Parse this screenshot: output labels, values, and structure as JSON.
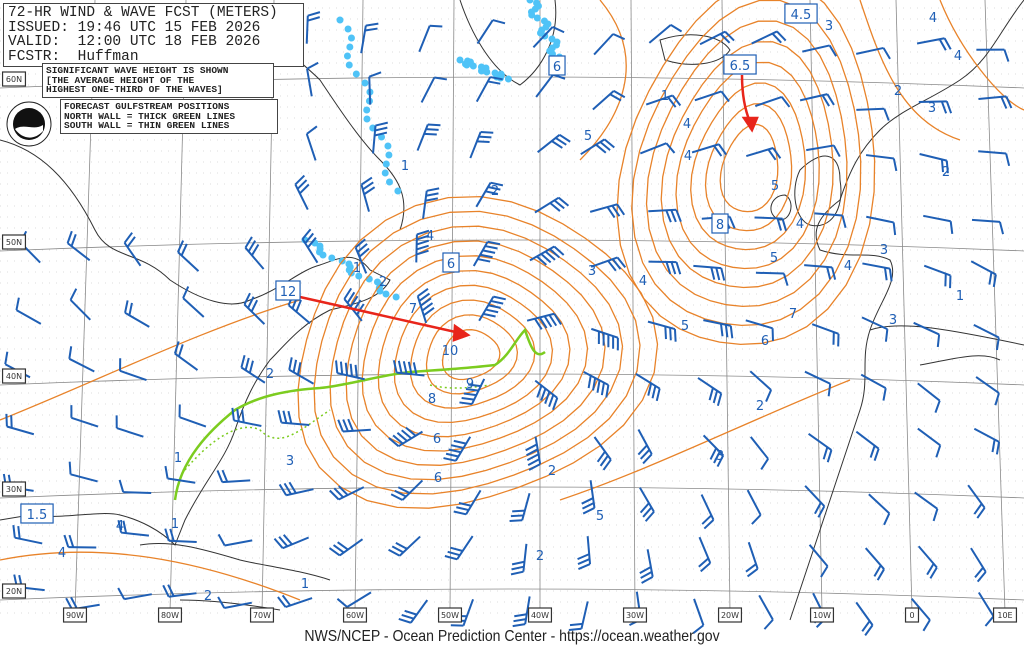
{
  "header": {
    "lines": [
      "72-HR WIND & WAVE FCST (METERS)",
      "ISSUED: 19:46 UTC 15 FEB 2026",
      "VALID:  12:00 UTC 18 FEB 2026",
      "FCSTR:  Huffman"
    ]
  },
  "notes": {
    "wave_height": [
      "SIGNIFICANT WAVE HEIGHT IS SHOWN",
      "[THE AVERAGE HEIGHT OF THE",
      "HIGHEST ONE-THIRD OF THE WAVES]"
    ],
    "gulfstream": [
      "FORECAST GULFSTREAM POSITIONS",
      "NORTH WALL = THICK GREEN LINES",
      "SOUTH WALL = THIN GREEN LINES"
    ]
  },
  "logo": {
    "text": "NOAA"
  },
  "footer": "NWS/NCEP - Ocean Prediction Center - https://ocean.weather.gov",
  "lat_labels": [
    "60N",
    "50N",
    "40N",
    "30N",
    "20N"
  ],
  "lon_labels": [
    "90W",
    "80W",
    "70W",
    "60W",
    "50W",
    "40W",
    "30W",
    "20W",
    "10W",
    "0",
    "10E"
  ],
  "max_height_boxes": [
    "12",
    "6",
    "6",
    "6.5",
    "4.5",
    "8",
    "1.5"
  ],
  "contour_labels": [
    "1",
    "1",
    "2",
    "2",
    "2",
    "3",
    "4",
    "5",
    "6",
    "7",
    "8",
    "9",
    "10",
    "4",
    "6",
    "2",
    "3",
    "4",
    "5",
    "6",
    "7",
    "5",
    "4",
    "3",
    "2",
    "4",
    "5",
    "4",
    "3",
    "2",
    "1",
    "1",
    "1",
    "1",
    "3",
    "4",
    "2",
    "3",
    "4",
    "4",
    "2",
    "4",
    "5",
    "3",
    "2",
    "1"
  ],
  "colors": {
    "wave_contour": "#e8832a",
    "wind_barb": "#1f5fb5",
    "gulfstream": "#7ccc1f",
    "ice": "#4fc3f7",
    "storm_track": "#e8251b",
    "coastline": "#333333",
    "grid": "#8a8a8a"
  }
}
